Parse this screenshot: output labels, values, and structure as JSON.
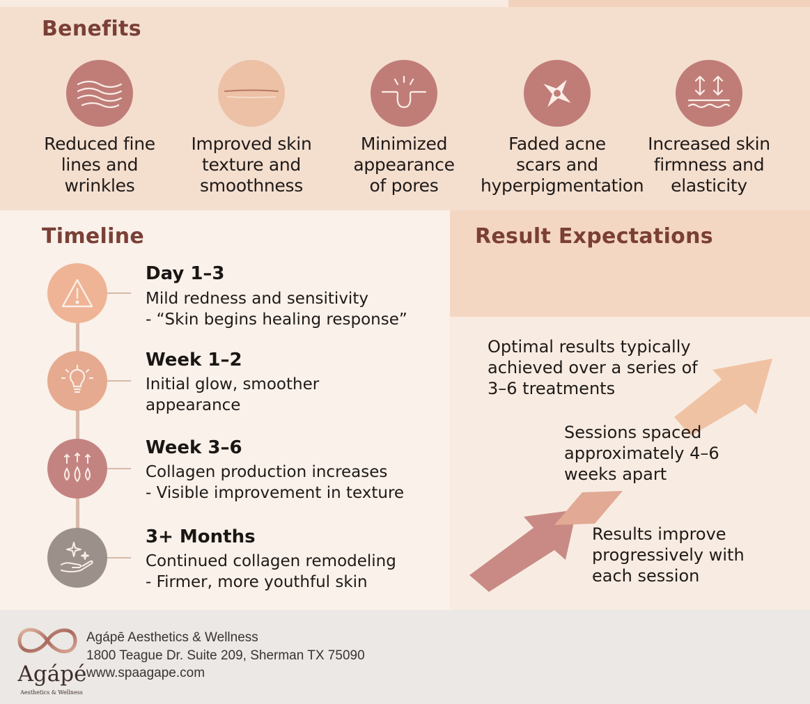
{
  "benefits": {
    "title": "Benefits",
    "items": [
      {
        "icon": "wavy-lines-icon",
        "label": "Reduced fine\nlines and\nwrinkles",
        "color": "#c07d78"
      },
      {
        "icon": "smooth-line-icon",
        "label": "Improved skin\ntexture and\nsmoothness",
        "color": "#ecc1a6"
      },
      {
        "icon": "pore-icon",
        "label": "Minimized\nappearance\nof pores",
        "color": "#c07d78"
      },
      {
        "icon": "sparkle-spot-icon",
        "label": "Faded acne\nscars and\nhyperpigmentation",
        "color": "#c07d78"
      },
      {
        "icon": "lift-arrows-icon",
        "label": "Increased skin\nfirmness and\nelasticity",
        "color": "#c07d78"
      }
    ]
  },
  "timeline": {
    "title": "Timeline",
    "steps": [
      {
        "icon": "warning-icon",
        "heading": "Day 1–3",
        "description": "Mild redness and sensitivity\n- “Skin begins healing response”",
        "color": "#eeb495"
      },
      {
        "icon": "lightbulb-icon",
        "heading": "Week 1–2",
        "description": "Initial glow, smoother\nappearance",
        "color": "#e5aa8f"
      },
      {
        "icon": "droplets-icon",
        "heading": "Week 3–6",
        "description": "Collagen production increases\n- Visible improvement in texture",
        "color": "#c38481"
      },
      {
        "icon": "hand-sparkle-icon",
        "heading": "3+ Months",
        "description": "Continued collagen remodeling\n- Firmer, more youthful skin",
        "color": "#9c918a"
      }
    ]
  },
  "results": {
    "title": "Result Expectations",
    "notes": [
      "Optimal results typically\nachieved over a series of\n3–6 treatments",
      "Sessions spaced\napproximately 4–6\nweeks apart",
      "Results improve\nprogressively with\neach session"
    ]
  },
  "footer": {
    "logo_word": "Agápé",
    "logo_sub": "Aesthetics & Wellness",
    "business_name": "Agápē Aesthetics & Wellness",
    "address": "1800 Teague Dr. Suite 209, Sherman TX 75090",
    "website": "www.spaagape.com"
  }
}
